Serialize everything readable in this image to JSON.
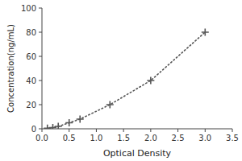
{
  "chart_data": {
    "type": "line",
    "xlabel": "Optical Density",
    "ylabel": "Concentration(ng/mL)",
    "x": [
      0.1,
      0.2,
      0.3,
      0.5,
      0.7,
      1.25,
      2.0,
      3.0
    ],
    "values": [
      0.5,
      1.0,
      2.0,
      5.0,
      8.0,
      20.0,
      40.0,
      80.0
    ],
    "xlim": [
      0,
      3.5
    ],
    "ylim": [
      0,
      100
    ],
    "xticks": [
      {
        "value": 0,
        "label": "0.0"
      },
      0.5,
      {
        "value": 1.0,
        "label": "1.0"
      },
      1.5,
      {
        "value": 2.0,
        "label": "2.0"
      },
      2.5,
      {
        "value": 3.0,
        "label": "3.0"
      },
      3.5
    ],
    "yticks": [
      0,
      20,
      40,
      60,
      80,
      100
    ],
    "color": "#555555",
    "marker": "plus",
    "line_style": "dotted",
    "grid": false
  }
}
